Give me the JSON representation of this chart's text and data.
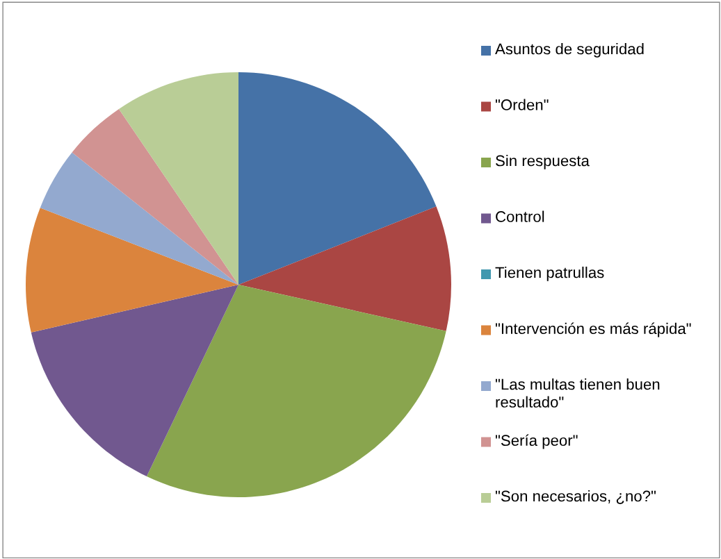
{
  "chart_data": {
    "type": "pie",
    "categories": [
      "Asuntos de seguridad",
      "\"Orden\"",
      "Sin respuesta",
      "Control",
      "Tienen patrullas",
      "\"Intervención es más rápida\"",
      "\"Las multas tienen buen resultado\"",
      "\"Sería peor\"",
      "\"Son necesarios, ¿no?\""
    ],
    "values": [
      19.0,
      9.5,
      28.6,
      14.3,
      0,
      9.5,
      4.8,
      4.8,
      9.5
    ],
    "colors": [
      "#4572a7",
      "#aa4643",
      "#89a54e",
      "#71588f",
      "#4198af",
      "#db843d",
      "#93a9cf",
      "#d19392",
      "#b9cd96"
    ],
    "legend": "right"
  }
}
